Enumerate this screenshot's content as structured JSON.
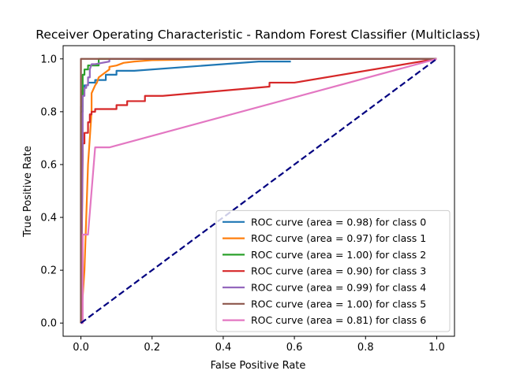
{
  "chart_data": {
    "type": "line",
    "title": "Receiver Operating Characteristic - Random Forest Classifier (Multiclass)",
    "xlabel": "False Positive Rate",
    "ylabel": "True Positive Rate",
    "xlim": [
      -0.05,
      1.05
    ],
    "ylim": [
      -0.05,
      1.05
    ],
    "xticks": [
      "0.0",
      "0.2",
      "0.4",
      "0.6",
      "0.8",
      "1.0"
    ],
    "yticks": [
      "0.0",
      "0.2",
      "0.4",
      "0.6",
      "0.8",
      "1.0"
    ],
    "xtick_values": [
      0,
      0.2,
      0.4,
      0.6,
      0.8,
      1.0
    ],
    "ytick_values": [
      0,
      0.2,
      0.4,
      0.6,
      0.8,
      1.0
    ],
    "grid": false,
    "legend_position": "lower-right",
    "diagonal": {
      "x": [
        0,
        1
      ],
      "y": [
        0,
        1
      ],
      "color": "#000080",
      "style": "dashed"
    },
    "series": [
      {
        "name": "ROC curve (area = 0.98) for class 0",
        "color": "#1f77b4",
        "x": [
          0,
          0,
          0.005,
          0.005,
          0.01,
          0.01,
          0.02,
          0.02,
          0.04,
          0.04,
          0.07,
          0.07,
          0.1,
          0.1,
          0.15,
          0.5,
          0.59
        ],
        "y": [
          0,
          0.82,
          0.82,
          0.88,
          0.88,
          0.9,
          0.9,
          0.91,
          0.91,
          0.92,
          0.92,
          0.94,
          0.94,
          0.955,
          0.955,
          0.99,
          0.99
        ]
      },
      {
        "name": "ROC curve (area = 0.97) for class 1",
        "color": "#ff7f0e",
        "x": [
          0,
          0.005,
          0.01,
          0.015,
          0.02,
          0.03,
          0.03,
          0.04,
          0.045,
          0.05,
          0.06,
          0.07,
          0.08,
          0.08,
          0.1,
          0.12,
          0.15,
          0.2,
          0.45,
          1.0
        ],
        "y": [
          0,
          0.1,
          0.2,
          0.4,
          0.6,
          0.8,
          0.87,
          0.9,
          0.91,
          0.93,
          0.94,
          0.95,
          0.96,
          0.97,
          0.975,
          0.985,
          0.99,
          0.995,
          1.0,
          1.0
        ]
      },
      {
        "name": "ROC curve (area = 1.00) for class 2",
        "color": "#2ca02c",
        "x": [
          0,
          0,
          0.005,
          0.005,
          0.01,
          0.01,
          0.02,
          0.02,
          0.05,
          0.05,
          1.0
        ],
        "y": [
          0,
          0.8,
          0.8,
          0.94,
          0.94,
          0.96,
          0.96,
          0.975,
          0.975,
          1.0,
          1.0
        ]
      },
      {
        "name": "ROC curve (area = 0.90) for class 3",
        "color": "#d62728",
        "x": [
          0,
          0.005,
          0.005,
          0.01,
          0.01,
          0.02,
          0.02,
          0.025,
          0.025,
          0.03,
          0.03,
          0.04,
          0.04,
          0.1,
          0.1,
          0.13,
          0.13,
          0.18,
          0.18,
          0.23,
          0.53,
          0.53,
          0.6,
          1.0
        ],
        "y": [
          0,
          0.63,
          0.68,
          0.68,
          0.72,
          0.72,
          0.76,
          0.76,
          0.79,
          0.79,
          0.8,
          0.8,
          0.81,
          0.81,
          0.825,
          0.825,
          0.84,
          0.84,
          0.86,
          0.86,
          0.895,
          0.91,
          0.91,
          1.0
        ]
      },
      {
        "name": "ROC curve (area = 0.99) for class 4",
        "color": "#9467bd",
        "x": [
          0,
          0.005,
          0.005,
          0.01,
          0.01,
          0.015,
          0.015,
          0.02,
          0.02,
          0.025,
          0.025,
          0.03,
          0.04,
          0.08,
          0.08,
          1.0
        ],
        "y": [
          0,
          0.7,
          0.86,
          0.86,
          0.89,
          0.89,
          0.9,
          0.9,
          0.93,
          0.93,
          0.96,
          0.98,
          0.98,
          0.99,
          1.0,
          1.0
        ]
      },
      {
        "name": "ROC curve (area = 1.00) for class 5",
        "color": "#8c564b",
        "x": [
          0,
          0,
          1.0
        ],
        "y": [
          0,
          1.0,
          1.0
        ]
      },
      {
        "name": "ROC curve (area = 0.81) for class 6",
        "color": "#e377c2",
        "x": [
          0,
          0.005,
          0.005,
          0.02,
          0.02,
          0.04,
          0.04,
          0.08,
          0.08,
          1.0
        ],
        "y": [
          0,
          0.0,
          0.335,
          0.335,
          0.335,
          0.665,
          0.665,
          0.665,
          0.665,
          1.0
        ]
      }
    ]
  }
}
